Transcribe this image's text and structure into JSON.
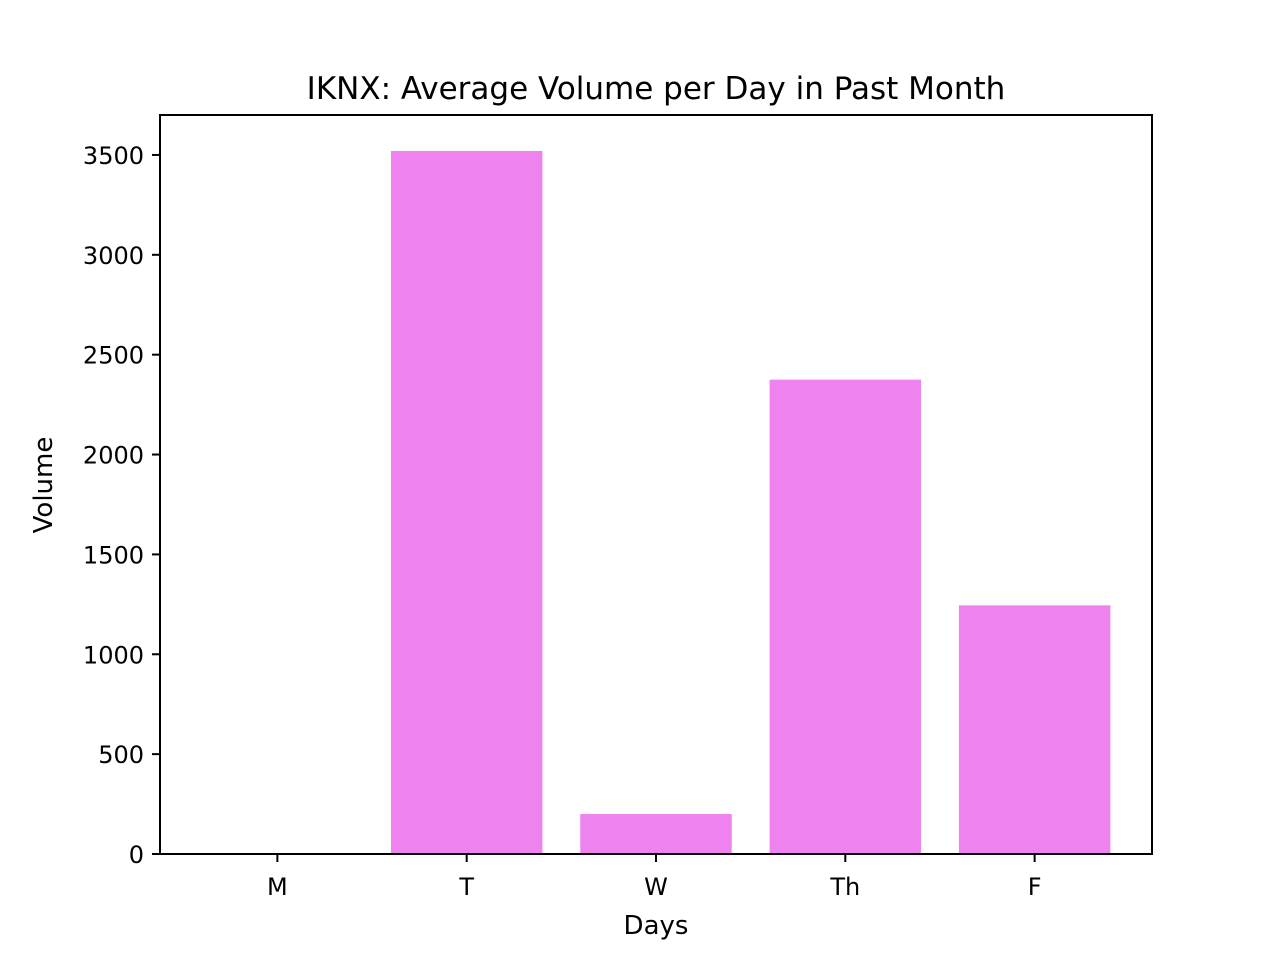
{
  "chart_data": {
    "type": "bar",
    "title": "IKNX: Average Volume per Day in Past Month",
    "xlabel": "Days",
    "ylabel": "Volume",
    "categories": [
      "M",
      "T",
      "W",
      "Th",
      "F"
    ],
    "values": [
      0,
      3520,
      200,
      2375,
      1245
    ],
    "ylim": [
      0,
      3700
    ],
    "yticks": [
      0,
      500,
      1000,
      1500,
      2000,
      2500,
      3000,
      3500
    ],
    "bar_color": "#EE82EE",
    "grid": false,
    "legend": "none"
  }
}
